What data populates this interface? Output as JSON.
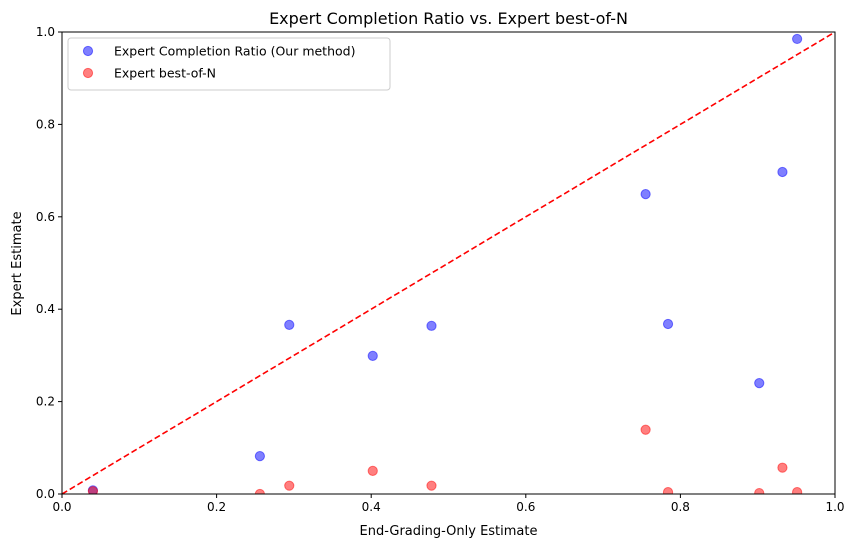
{
  "chart_data": {
    "type": "scatter",
    "title": "Expert Completion Ratio vs. Expert best-of-N",
    "xlabel": "End-Grading-Only Estimate",
    "ylabel": "Expert Estimate",
    "xlim": [
      0.0,
      1.0
    ],
    "ylim": [
      0.0,
      1.0
    ],
    "xticks": [
      "0.0",
      "0.2",
      "0.4",
      "0.6",
      "0.8",
      "1.0"
    ],
    "yticks": [
      "0.0",
      "0.2",
      "0.4",
      "0.6",
      "0.8",
      "1.0"
    ],
    "grid": false,
    "legend_position": "top-left",
    "reference_line": {
      "style": "dashed",
      "color": "#ff0000",
      "from": [
        0,
        0
      ],
      "to": [
        1,
        1
      ]
    },
    "series": [
      {
        "name": "Expert Completion Ratio (Our method)",
        "color": "#0000ff",
        "points": [
          {
            "x": 0.04,
            "y": 0.008
          },
          {
            "x": 0.256,
            "y": 0.082
          },
          {
            "x": 0.294,
            "y": 0.366
          },
          {
            "x": 0.402,
            "y": 0.299
          },
          {
            "x": 0.478,
            "y": 0.364
          },
          {
            "x": 0.755,
            "y": 0.649
          },
          {
            "x": 0.784,
            "y": 0.368
          },
          {
            "x": 0.902,
            "y": 0.24
          },
          {
            "x": 0.932,
            "y": 0.697
          },
          {
            "x": 0.951,
            "y": 0.985
          }
        ]
      },
      {
        "name": "Expert best-of-N",
        "color": "#ff0000",
        "points": [
          {
            "x": 0.04,
            "y": 0.006
          },
          {
            "x": 0.256,
            "y": 0.0
          },
          {
            "x": 0.294,
            "y": 0.018
          },
          {
            "x": 0.402,
            "y": 0.05
          },
          {
            "x": 0.478,
            "y": 0.018
          },
          {
            "x": 0.755,
            "y": 0.139
          },
          {
            "x": 0.784,
            "y": 0.004
          },
          {
            "x": 0.902,
            "y": 0.002
          },
          {
            "x": 0.932,
            "y": 0.057
          },
          {
            "x": 0.951,
            "y": 0.004
          }
        ]
      }
    ]
  }
}
